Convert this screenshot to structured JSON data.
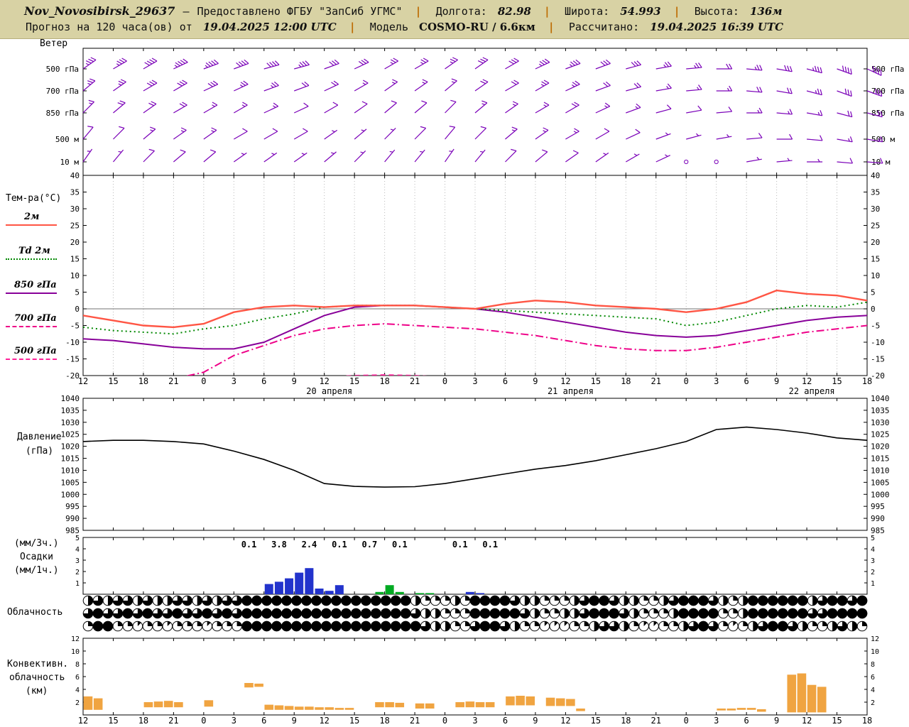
{
  "header": {
    "station": "Nov_Novosibirsk_29637",
    "dash": "—",
    "provided": "Предоставлено ФГБУ \"ЗапСиб УГМС\"",
    "sep": "|",
    "lon_label": "Долгота:",
    "lon": "82.98",
    "lat_label": "Широта:",
    "lat": "54.993",
    "alt_label": "Высота:",
    "alt": "136м",
    "line2_prefix": "Прогноз на 120 часа(ов) от",
    "run_time": "19.04.2025 12:00 UTC",
    "model_label": "Модель",
    "model": "COSMO-RU / 6.6км",
    "calc_label": "Рассчитано:",
    "calc_time": "19.04.2025 16:39 UTC"
  },
  "panels": {
    "wind": {
      "title": "Ветер"
    },
    "temp": {
      "title": "Тем-ра(°C)"
    },
    "pressure": {
      "label1": "Давление",
      "label2": "(гПа)"
    },
    "precip": {
      "l1": "(мм/3ч.)",
      "l2": "Осадки",
      "l3": "(мм/1ч.)"
    },
    "clouds": {
      "title": "Облачность"
    },
    "conv": {
      "l1": "Конвективн.",
      "l2": "облачность",
      "l3": "(км)"
    }
  },
  "chart_data": {
    "x": {
      "hours_span": 78,
      "tick_step_hours": 3,
      "tick_labels": [
        "12",
        "15",
        "18",
        "21",
        "0",
        "3",
        "6",
        "9",
        "12",
        "15",
        "18",
        "21",
        "0",
        "3",
        "6",
        "9",
        "12",
        "15",
        "18",
        "21",
        "0",
        "3",
        "6",
        "9",
        "12",
        "15",
        "18"
      ],
      "date_labels": [
        {
          "label": "20 апреля",
          "hour": 24.5
        },
        {
          "label": "21 апреля",
          "hour": 48.5
        },
        {
          "label": "22 апреля",
          "hour": 72.5
        }
      ]
    },
    "wind": {
      "color": "#7a00b8",
      "step_hours": 3,
      "levels": [
        {
          "label": "500 гПа",
          "dir": [
            55,
            60,
            60,
            65,
            70,
            70,
            75,
            75,
            70,
            65,
            60,
            60,
            55,
            55,
            60,
            65,
            70,
            70,
            75,
            80,
            85,
            90,
            95,
            100,
            105,
            110,
            115
          ],
          "speed": [
            35,
            35,
            40,
            45,
            45,
            40,
            40,
            35,
            30,
            30,
            25,
            25,
            25,
            30,
            30,
            35,
            35,
            30,
            30,
            25,
            25,
            20,
            25,
            30,
            35,
            40,
            40
          ]
        },
        {
          "label": "700 гПа",
          "dir": [
            50,
            55,
            60,
            60,
            65,
            65,
            70,
            70,
            65,
            60,
            55,
            55,
            50,
            55,
            60,
            60,
            65,
            70,
            75,
            80,
            85,
            90,
            95,
            100,
            105,
            110,
            110
          ],
          "speed": [
            25,
            25,
            30,
            30,
            30,
            25,
            25,
            20,
            20,
            15,
            15,
            15,
            15,
            20,
            20,
            25,
            25,
            20,
            20,
            15,
            15,
            15,
            20,
            20,
            25,
            30,
            30
          ]
        },
        {
          "label": "850 гПа",
          "dir": [
            45,
            50,
            55,
            60,
            60,
            60,
            65,
            65,
            60,
            55,
            50,
            50,
            45,
            50,
            55,
            60,
            60,
            65,
            70,
            75,
            80,
            85,
            90,
            95,
            100,
            105,
            105
          ],
          "speed": [
            15,
            20,
            20,
            20,
            15,
            15,
            15,
            10,
            10,
            10,
            10,
            10,
            10,
            15,
            15,
            15,
            20,
            15,
            15,
            10,
            10,
            10,
            15,
            15,
            15,
            20,
            20
          ]
        },
        {
          "label": "500 м",
          "dir": [
            40,
            45,
            50,
            55,
            55,
            60,
            60,
            60,
            55,
            50,
            45,
            45,
            40,
            45,
            50,
            55,
            60,
            60,
            65,
            70,
            75,
            80,
            85,
            90,
            95,
            100,
            100
          ],
          "speed": [
            10,
            10,
            15,
            15,
            15,
            10,
            10,
            10,
            5,
            5,
            5,
            10,
            10,
            10,
            15,
            15,
            15,
            10,
            10,
            5,
            5,
            5,
            10,
            10,
            10,
            15,
            15
          ]
        },
        {
          "label": "10 м",
          "dir": [
            35,
            40,
            45,
            50,
            50,
            55,
            55,
            55,
            50,
            45,
            40,
            40,
            35,
            40,
            45,
            50,
            55,
            55,
            60,
            65,
            70,
            75,
            80,
            85,
            90,
            95,
            95
          ],
          "speed": [
            5,
            5,
            10,
            10,
            10,
            5,
            5,
            5,
            5,
            5,
            5,
            5,
            5,
            5,
            10,
            10,
            10,
            5,
            5,
            5,
            0,
            0,
            5,
            5,
            5,
            10,
            10
          ]
        }
      ]
    },
    "temperature": {
      "type": "line",
      "ylim": [
        -20,
        40
      ],
      "ticks": [
        40,
        35,
        30,
        25,
        20,
        15,
        10,
        5,
        0,
        -5,
        -10,
        -15,
        -20
      ],
      "step_hours": 3,
      "series": [
        {
          "name": "2м",
          "color": "#ff5544",
          "style": "solid",
          "values": [
            -2,
            -3.5,
            -5,
            -5.5,
            -4.5,
            -1,
            0.5,
            1,
            0.5,
            1,
            1,
            1,
            0.5,
            0,
            1.5,
            2.5,
            2,
            1,
            0.5,
            0,
            -1,
            0,
            2,
            5.5,
            4.5,
            4,
            2.5
          ]
        },
        {
          "name": "Td 2м",
          "color": "#008800",
          "style": "dotted",
          "values": [
            -5.5,
            -6.5,
            -7,
            -7.5,
            -6,
            -5,
            -3,
            -1.5,
            0.5,
            1,
            1,
            1,
            0.5,
            0,
            -0.5,
            -1,
            -1.5,
            -2,
            -2.5,
            -3,
            -5,
            -4,
            -2,
            0,
            1,
            0.5,
            2
          ]
        },
        {
          "name": "850 гПа",
          "color": "#880099",
          "style": "solid",
          "values": [
            -9,
            -9.5,
            -10.5,
            -11.5,
            -12,
            -12,
            -10,
            -6,
            -2,
            0.5,
            1,
            1,
            0.5,
            0,
            -1,
            -2.5,
            -4,
            -5.5,
            -7,
            -8,
            -8.5,
            -8,
            -6.5,
            -5,
            -3.5,
            -2.5,
            -2
          ]
        },
        {
          "name": "700 гПа",
          "color": "#ee0088",
          "style": "dashdot",
          "values": [
            -22,
            -22,
            -21.5,
            -21,
            -19,
            -14,
            -11,
            -8,
            -6,
            -5,
            -4.5,
            -5,
            -5.5,
            -6,
            -7,
            -8,
            -9.5,
            -11,
            -12,
            -12.5,
            -12.5,
            -11.5,
            -10,
            -8.5,
            -7,
            -6,
            -5
          ]
        },
        {
          "name": "500 гПа",
          "color": "#ff2299",
          "style": "dashed",
          "values": [
            -26,
            -26,
            -25,
            -25,
            -24,
            -23,
            -22,
            -21,
            -20.5,
            -20,
            -19.8,
            -20,
            -20.5,
            -21,
            -22,
            -23,
            -24,
            -24.5,
            -25,
            -25,
            -25,
            -24,
            -23,
            -22.5,
            -22,
            -21.5,
            -21
          ]
        }
      ]
    },
    "pressure": {
      "type": "line",
      "ylim": [
        985,
        1040
      ],
      "ticks": [
        1040,
        1035,
        1030,
        1025,
        1020,
        1015,
        1010,
        1005,
        1000,
        995,
        990,
        985
      ],
      "color": "#000000",
      "step_hours": 3,
      "values": [
        1022,
        1022.5,
        1022.5,
        1022,
        1021,
        1018,
        1014.5,
        1010,
        1004.5,
        1003.3,
        1003,
        1003.2,
        1004.5,
        1006.5,
        1008.5,
        1010.5,
        1012,
        1014,
        1016.5,
        1019,
        1022,
        1027,
        1028,
        1027,
        1025.5,
        1023.5,
        1022.5
      ]
    },
    "precipitation": {
      "type": "bar",
      "ylim": [
        0,
        5
      ],
      "ticks": [
        5,
        4,
        3,
        2,
        1
      ],
      "colors": {
        "rain": "#2233cc",
        "snow": "#00aa22"
      },
      "labels_3h": [
        {
          "start_hour": 15,
          "value": "0.1"
        },
        {
          "start_hour": 18,
          "value": "3.8"
        },
        {
          "start_hour": 21,
          "value": "2.4"
        },
        {
          "start_hour": 24,
          "value": "0.1"
        },
        {
          "start_hour": 27,
          "value": "0.7"
        },
        {
          "start_hour": 30,
          "value": "0.1"
        },
        {
          "start_hour": 36,
          "value": "0.1"
        },
        {
          "start_hour": 39,
          "value": "0.1"
        }
      ],
      "bars_1h": [
        {
          "hour": 18,
          "value": 0.9,
          "kind": "rain"
        },
        {
          "hour": 19,
          "value": 1.1,
          "kind": "rain"
        },
        {
          "hour": 20,
          "value": 1.4,
          "kind": "rain"
        },
        {
          "hour": 21,
          "value": 1.9,
          "kind": "rain"
        },
        {
          "hour": 22,
          "value": 2.3,
          "kind": "rain"
        },
        {
          "hour": 23,
          "value": 0.5,
          "kind": "rain"
        },
        {
          "hour": 24,
          "value": 0.3,
          "kind": "rain"
        },
        {
          "hour": 25,
          "value": 0.8,
          "kind": "rain"
        },
        {
          "hour": 29,
          "value": 0.2,
          "kind": "snow"
        },
        {
          "hour": 30,
          "value": 0.8,
          "kind": "snow"
        },
        {
          "hour": 31,
          "value": 0.2,
          "kind": "snow"
        },
        {
          "hour": 33,
          "value": 0.1,
          "kind": "snow"
        },
        {
          "hour": 34,
          "value": 0.1,
          "kind": "snow"
        },
        {
          "hour": 38,
          "value": 0.2,
          "kind": "rain"
        },
        {
          "hour": 39,
          "value": 0.1,
          "kind": "rain"
        }
      ]
    },
    "cloudiness": {
      "type": "symbols",
      "okta_max": 8,
      "rows": [
        [
          4,
          6,
          4,
          6,
          6,
          4,
          6,
          4,
          4,
          6,
          6,
          4,
          6,
          4,
          6,
          6,
          8,
          8,
          8,
          8,
          8,
          8,
          8,
          8,
          8,
          8,
          8,
          8,
          8,
          8,
          8,
          8,
          8,
          4,
          2,
          2,
          2,
          4,
          2,
          8,
          8,
          8,
          8,
          6,
          4,
          4,
          2,
          2,
          2,
          4,
          6,
          8,
          8,
          6,
          4,
          4,
          2,
          2,
          4,
          6,
          8,
          8,
          8,
          6,
          4,
          2,
          4,
          8,
          8,
          8,
          8,
          8,
          8,
          4,
          6,
          8,
          8,
          6,
          8
        ],
        [
          6,
          8,
          6,
          6,
          8,
          6,
          8,
          6,
          6,
          8,
          6,
          6,
          8,
          6,
          8,
          6,
          8,
          8,
          8,
          8,
          8,
          8,
          8,
          8,
          8,
          8,
          8,
          8,
          8,
          8,
          8,
          8,
          8,
          6,
          4,
          4,
          2,
          2,
          2,
          8,
          8,
          8,
          8,
          8,
          6,
          4,
          2,
          2,
          4,
          4,
          6,
          8,
          8,
          8,
          6,
          4,
          2,
          2,
          2,
          4,
          8,
          8,
          8,
          8,
          2,
          2,
          4,
          8,
          8,
          8,
          8,
          8,
          8,
          6,
          6,
          8,
          8,
          8,
          8
        ],
        [
          2,
          8,
          8,
          2,
          2,
          1,
          2,
          2,
          1,
          2,
          2,
          2,
          1,
          2,
          2,
          2,
          8,
          8,
          8,
          8,
          8,
          8,
          8,
          8,
          8,
          8,
          8,
          8,
          8,
          8,
          8,
          8,
          8,
          8,
          6,
          4,
          4,
          2,
          2,
          6,
          8,
          8,
          6,
          4,
          2,
          2,
          1,
          1,
          1,
          2,
          2,
          4,
          6,
          6,
          4,
          2,
          1,
          1,
          2,
          2,
          4,
          6,
          8,
          6,
          2,
          1,
          2,
          4,
          6,
          8,
          8,
          6,
          4,
          2,
          2,
          4,
          6,
          4,
          2
        ]
      ]
    },
    "convective": {
      "type": "bar",
      "ylim": [
        0,
        12
      ],
      "ticks": [
        12,
        10,
        8,
        6,
        4,
        2
      ],
      "color": "#f0a441",
      "bars": [
        [
          0,
          0.8,
          2.9
        ],
        [
          1,
          0.8,
          2.6
        ],
        [
          6,
          1.2,
          2.0
        ],
        [
          7,
          1.2,
          2.1
        ],
        [
          8,
          1.2,
          2.2
        ],
        [
          9,
          1.2,
          2.0
        ],
        [
          12,
          1.3,
          2.3
        ],
        [
          16,
          4.3,
          5.0
        ],
        [
          17,
          4.4,
          4.9
        ],
        [
          18,
          0.8,
          1.6
        ],
        [
          19,
          0.8,
          1.5
        ],
        [
          20,
          0.8,
          1.4
        ],
        [
          21,
          0.8,
          1.3
        ],
        [
          22,
          0.8,
          1.3
        ],
        [
          23,
          0.8,
          1.2
        ],
        [
          24,
          0.8,
          1.2
        ],
        [
          25,
          0.8,
          1.1
        ],
        [
          26,
          0.8,
          1.1
        ],
        [
          29,
          1.2,
          2.0
        ],
        [
          30,
          1.2,
          2.0
        ],
        [
          31,
          1.2,
          1.9
        ],
        [
          33,
          1.0,
          1.8
        ],
        [
          34,
          1.0,
          1.8
        ],
        [
          37,
          1.2,
          2.0
        ],
        [
          38,
          1.2,
          2.1
        ],
        [
          39,
          1.2,
          2.0
        ],
        [
          40,
          1.2,
          2.0
        ],
        [
          42,
          1.5,
          2.9
        ],
        [
          43,
          1.5,
          3.0
        ],
        [
          44,
          1.5,
          2.9
        ],
        [
          46,
          1.4,
          2.7
        ],
        [
          47,
          1.4,
          2.6
        ],
        [
          48,
          1.4,
          2.5
        ],
        [
          49,
          0.6,
          1.0
        ],
        [
          63,
          0.7,
          1.0
        ],
        [
          64,
          0.7,
          1.0
        ],
        [
          65,
          0.8,
          1.1
        ],
        [
          66,
          0.8,
          1.1
        ],
        [
          67,
          0.5,
          0.9
        ],
        [
          70,
          0.4,
          6.3
        ],
        [
          71,
          0.4,
          6.5
        ],
        [
          72,
          0.4,
          4.7
        ],
        [
          73,
          0.4,
          4.4
        ]
      ]
    }
  }
}
